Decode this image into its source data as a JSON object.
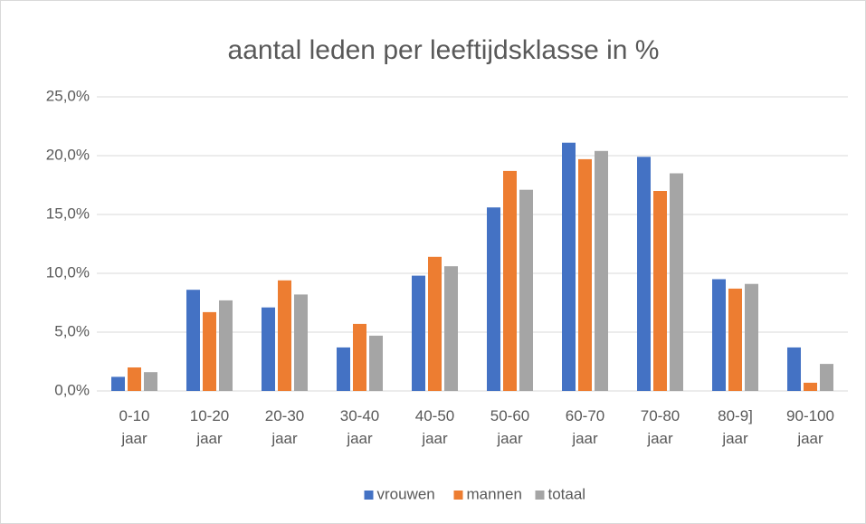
{
  "chart_data": {
    "type": "bar",
    "title": "aantal leden per leeftijdsklasse in %",
    "categories": [
      "0-10 jaar",
      "10-20 jaar",
      "20-30 jaar",
      "30-40 jaar",
      "40-50 jaar",
      "50-60 jaar",
      "60-70 jaar",
      "70-80 jaar",
      "80-9] jaar",
      "90-100 jaar"
    ],
    "series": [
      {
        "name": "vrouwen",
        "color": "#4472c4",
        "values": [
          1.2,
          8.6,
          7.1,
          3.7,
          9.8,
          15.6,
          21.1,
          19.9,
          9.5,
          3.7
        ]
      },
      {
        "name": "mannen",
        "color": "#ed7d31",
        "values": [
          2.0,
          6.7,
          9.4,
          5.7,
          11.4,
          18.7,
          19.7,
          17.0,
          8.7,
          0.7
        ]
      },
      {
        "name": "totaal",
        "color": "#a5a5a5",
        "values": [
          1.6,
          7.7,
          8.2,
          4.7,
          10.6,
          17.1,
          20.4,
          18.5,
          9.1,
          2.3
        ]
      }
    ],
    "ylim": [
      0,
      25
    ],
    "yticks": [
      {
        "value": 0,
        "label": "0,0%"
      },
      {
        "value": 5,
        "label": "5,0%"
      },
      {
        "value": 10,
        "label": "10,0%"
      },
      {
        "value": 15,
        "label": "15,0%"
      },
      {
        "value": 20,
        "label": "20,0%"
      },
      {
        "value": 25,
        "label": "25,0%"
      }
    ],
    "grid": true,
    "legend": "bottom"
  }
}
